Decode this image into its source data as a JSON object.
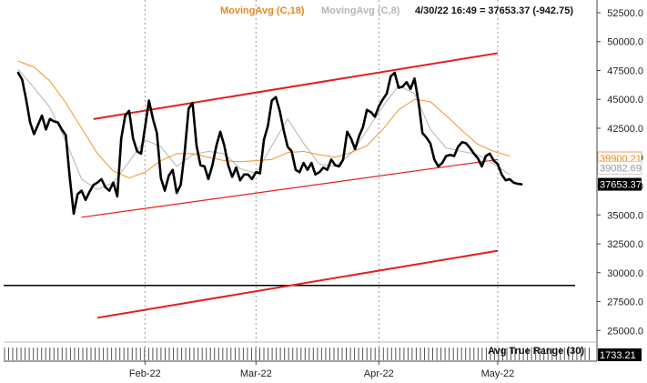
{
  "chart_data": {
    "type": "line",
    "legend": {
      "ma18_label": "MovingAvg (C,18)",
      "ma8_label": "MovingAvg (C,8)",
      "quote": "4/30/22 16:49 = 37653.37 (-942.75)"
    },
    "colors": {
      "price": "#000000",
      "ma18": "#f39c3a",
      "ma8": "#b9b9b9",
      "channel": "#e02020",
      "horizontal": "#000000",
      "grid": "#9a9a9a",
      "current_tag": "#000000"
    },
    "yaxis": {
      "ticks": [
        52500,
        50000,
        47500,
        45000,
        42500,
        40000,
        37500,
        35000,
        32500,
        30000,
        27500,
        25000
      ],
      "tick_labels": [
        "52500.0",
        "50000.0",
        "47500.0",
        "45000.0",
        "42500.0",
        "40000.0",
        "37500.0",
        "35000.0",
        "32500.0",
        "30000.0",
        "27500.0",
        "25000.0"
      ],
      "range": [
        24000,
        53600
      ]
    },
    "xaxis": {
      "range": [
        0,
        128
      ],
      "month_ticks": [
        {
          "label": "Feb-22",
          "x": 32
        },
        {
          "label": "Mar-22",
          "x": 60
        },
        {
          "label": "Apr-22",
          "x": 91
        },
        {
          "label": "May-22",
          "x": 121
        }
      ]
    },
    "price_tags": [
      {
        "label": "39900.21",
        "value": 39900.21,
        "style": "orange"
      },
      {
        "label": "39082.69",
        "value": 39082.69,
        "style": "gray"
      },
      {
        "label": "37653.37",
        "value": 37653.37,
        "style": "black"
      }
    ],
    "series": [
      {
        "name": "Close",
        "style": "price",
        "x": [
          0,
          1,
          2,
          3,
          4,
          5,
          6,
          7,
          8,
          9,
          10,
          11,
          12,
          13,
          14,
          15,
          16,
          17,
          18,
          19,
          20,
          21,
          22,
          23,
          24,
          25,
          26,
          27,
          28,
          29,
          30,
          31,
          32,
          33,
          34,
          35,
          36,
          37,
          38,
          39,
          40,
          41,
          42,
          43,
          44,
          45,
          46,
          47,
          48,
          49,
          50,
          51,
          52,
          53,
          54,
          55,
          56,
          57,
          58,
          59,
          60,
          61,
          62,
          63,
          64,
          65,
          66,
          67,
          68,
          69,
          70,
          71,
          72,
          73,
          74,
          75,
          76,
          77,
          78,
          79,
          80,
          81,
          82,
          83,
          84,
          85,
          86,
          87,
          88,
          89,
          90,
          91,
          92,
          93,
          94,
          95,
          96,
          97,
          98,
          99,
          100,
          101,
          102,
          103,
          104,
          105,
          106,
          107,
          108,
          109,
          110,
          111,
          112,
          113,
          114,
          115,
          116,
          117,
          118,
          119,
          120,
          121,
          122,
          123,
          124,
          125,
          126,
          127
        ],
        "y": [
          47300,
          46700,
          45000,
          43000,
          42000,
          42800,
          43600,
          42400,
          43300,
          43100,
          43000,
          42400,
          41900,
          38300,
          35100,
          36800,
          37100,
          36300,
          37000,
          37600,
          37800,
          38100,
          37400,
          37100,
          37800,
          36600,
          41600,
          43600,
          44000,
          41600,
          40500,
          40300,
          42600,
          44900,
          43300,
          42100,
          38200,
          37100,
          38400,
          38900,
          36900,
          37600,
          40400,
          44200,
          44700,
          41000,
          39300,
          39200,
          38100,
          39300,
          41000,
          42200,
          41000,
          39300,
          38300,
          39100,
          38000,
          38500,
          38500,
          38100,
          38700,
          38600,
          41500,
          42700,
          44900,
          45200,
          44000,
          42300,
          40900,
          40500,
          38900,
          38700,
          39500,
          38900,
          39500,
          38500,
          38700,
          39100,
          38900,
          39800,
          39300,
          39200,
          39800,
          42200,
          41600,
          40700,
          41800,
          42600,
          44100,
          43900,
          43500,
          44400,
          45000,
          45500,
          47000,
          47300,
          46000,
          46100,
          46500,
          45900,
          46800,
          44800,
          42100,
          41700,
          41200,
          39800,
          39200,
          39500,
          40100,
          40200,
          40100,
          40900,
          41300,
          41200,
          40800,
          40300,
          39900,
          39200,
          40100,
          40300,
          39700,
          39400,
          38500,
          38000,
          38100,
          37800,
          37700,
          37650
        ]
      },
      {
        "name": "MovingAvg (C,18)",
        "style": "ma18",
        "x": [
          0,
          4,
          8,
          12,
          16,
          20,
          24,
          28,
          32,
          36,
          40,
          44,
          48,
          52,
          56,
          60,
          64,
          68,
          72,
          76,
          80,
          84,
          88,
          92,
          96,
          100,
          104,
          108,
          112,
          116,
          120,
          124
        ],
        "y": [
          48300,
          47800,
          46600,
          44700,
          42500,
          40300,
          38800,
          38200,
          38700,
          39700,
          40300,
          40300,
          40000,
          39700,
          39600,
          39700,
          39800,
          40400,
          40500,
          40200,
          40000,
          40400,
          41000,
          42400,
          44100,
          45000,
          44800,
          43600,
          42300,
          41100,
          40500,
          40100
        ]
      },
      {
        "name": "MovingAvg (C,8)",
        "style": "ma8",
        "x": [
          0,
          4,
          8,
          12,
          16,
          20,
          24,
          28,
          32,
          36,
          40,
          44,
          48,
          52,
          56,
          60,
          64,
          68,
          72,
          76,
          80,
          84,
          88,
          92,
          96,
          100,
          104,
          108,
          112,
          116,
          120,
          124
        ],
        "y": [
          47600,
          46000,
          44300,
          41400,
          38100,
          37200,
          37800,
          39600,
          41500,
          40900,
          39200,
          40200,
          40500,
          40300,
          39000,
          38600,
          41000,
          43300,
          41200,
          39400,
          39200,
          40300,
          42300,
          44400,
          46200,
          45500,
          42400,
          40800,
          40500,
          40200,
          39400,
          38500
        ]
      }
    ],
    "channels": [
      {
        "name": "channel-upper",
        "x1": 19,
        "y1": 43300,
        "x2": 121,
        "y2": 49000
      },
      {
        "name": "channel-middle",
        "x1": 16,
        "y1": 34800,
        "x2": 121,
        "y2": 39800
      },
      {
        "name": "channel-lower",
        "x1": 20,
        "y1": 26100,
        "x2": 121,
        "y2": 31900
      }
    ],
    "hline": {
      "value": 28900
    },
    "atr": {
      "title": "Avg True Range (30)",
      "value_label": "1733.21",
      "bars": 143
    }
  }
}
